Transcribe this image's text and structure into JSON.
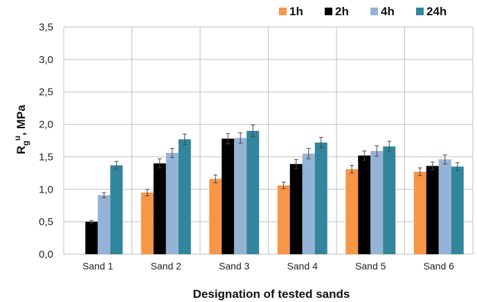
{
  "chart_data": {
    "type": "bar",
    "xlabel": "Designation of tested sands",
    "ylabel": {
      "base": "R",
      "sub": "g",
      "sup": "u",
      "rest": ", MPa"
    },
    "ylim": [
      0,
      3.5
    ],
    "yticks": [
      "0,0",
      "0,5",
      "1,0",
      "1,5",
      "2,0",
      "2,5",
      "3,0",
      "3,5"
    ],
    "grid": true,
    "legend_position": "top-right",
    "categories": [
      "Sand 1",
      "Sand 2",
      "Sand 3",
      "Sand 4",
      "Sand 5",
      "Sand 6"
    ],
    "series": [
      {
        "name": "1h",
        "color": "#F79646",
        "values": [
          null,
          0.95,
          1.16,
          1.06,
          1.31,
          1.27
        ],
        "errors": [
          null,
          0.05,
          0.06,
          0.05,
          0.06,
          0.06
        ]
      },
      {
        "name": "2h",
        "color": "#000000",
        "values": [
          0.5,
          1.4,
          1.78,
          1.39,
          1.52,
          1.36
        ],
        "errors": [
          0.02,
          0.07,
          0.08,
          0.07,
          0.07,
          0.06
        ]
      },
      {
        "name": "4h",
        "color": "#95B3D7",
        "values": [
          0.91,
          1.56,
          1.79,
          1.55,
          1.59,
          1.46
        ],
        "errors": [
          0.04,
          0.07,
          0.08,
          0.08,
          0.08,
          0.07
        ]
      },
      {
        "name": "24h",
        "color": "#31859C",
        "values": [
          1.37,
          1.77,
          1.9,
          1.72,
          1.66,
          1.35
        ],
        "errors": [
          0.06,
          0.08,
          0.09,
          0.08,
          0.08,
          0.06
        ]
      }
    ]
  }
}
